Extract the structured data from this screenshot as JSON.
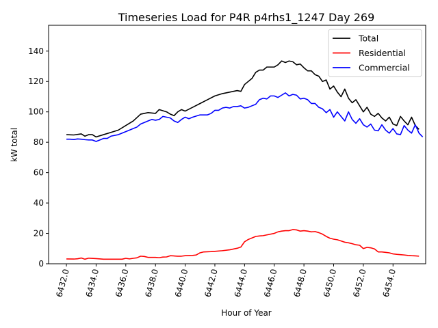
{
  "chart_data": {
    "type": "line",
    "title": "Timeseries Load for P4R p4rhs1_1247  Day 269",
    "xlabel": "Hour of Year",
    "ylabel": "kW total",
    "xlim": [
      6430.8,
      6456.2
    ],
    "ylim": [
      0,
      157
    ],
    "xticks": [
      6432,
      6434,
      6436,
      6438,
      6440,
      6442,
      6444,
      6446,
      6448,
      6450,
      6452,
      6454
    ],
    "xtick_labels": [
      "6432.0",
      "6434.0",
      "6436.0",
      "6438.0",
      "6440.0",
      "6442.0",
      "6444.0",
      "6446.0",
      "6448.0",
      "6450.0",
      "6452.0",
      "6454.0"
    ],
    "yticks": [
      0,
      20,
      40,
      60,
      80,
      100,
      120,
      140
    ],
    "ytick_labels": [
      "0",
      "20",
      "40",
      "60",
      "80",
      "100",
      "120",
      "140"
    ],
    "legend_position": "top-right",
    "grid": false,
    "series": [
      {
        "name": "Total",
        "color": "#000000",
        "points": [
          [
            6432.0,
            85.0
          ],
          [
            6432.5,
            84.8
          ],
          [
            6433.0,
            85.5
          ],
          [
            6433.25,
            84.0
          ],
          [
            6433.5,
            85.0
          ],
          [
            6433.75,
            85.0
          ],
          [
            6434.0,
            83.5
          ],
          [
            6434.5,
            85.0
          ],
          [
            6435.0,
            86.5
          ],
          [
            6435.5,
            88.0
          ],
          [
            6436.0,
            91.0
          ],
          [
            6436.5,
            94.0
          ],
          [
            6437.0,
            98.5
          ],
          [
            6437.5,
            99.5
          ],
          [
            6438.0,
            99.0
          ],
          [
            6438.25,
            101.5
          ],
          [
            6438.75,
            100.0
          ],
          [
            6439.0,
            98.5
          ],
          [
            6439.25,
            97.5
          ],
          [
            6439.5,
            100.0
          ],
          [
            6439.75,
            101.5
          ],
          [
            6440.0,
            100.5
          ],
          [
            6440.5,
            103.0
          ],
          [
            6441.0,
            105.5
          ],
          [
            6441.5,
            108.0
          ],
          [
            6442.0,
            110.5
          ],
          [
            6442.5,
            112.0
          ],
          [
            6443.0,
            113.0
          ],
          [
            6443.5,
            114.0
          ],
          [
            6443.75,
            113.5
          ],
          [
            6444.0,
            118.0
          ],
          [
            6444.5,
            122.0
          ],
          [
            6444.75,
            126.0
          ],
          [
            6445.0,
            127.5
          ],
          [
            6445.25,
            127.5
          ],
          [
            6445.5,
            129.5
          ],
          [
            6446.0,
            129.5
          ],
          [
            6446.25,
            131.0
          ],
          [
            6446.5,
            133.5
          ],
          [
            6446.75,
            132.5
          ],
          [
            6447.0,
            133.5
          ],
          [
            6447.25,
            133.0
          ],
          [
            6447.5,
            131.0
          ],
          [
            6447.75,
            131.5
          ],
          [
            6448.0,
            129.0
          ],
          [
            6448.25,
            127.0
          ],
          [
            6448.5,
            127.0
          ],
          [
            6448.75,
            124.5
          ],
          [
            6449.0,
            123.5
          ],
          [
            6449.25,
            120.0
          ],
          [
            6449.5,
            121.0
          ],
          [
            6449.75,
            115.0
          ],
          [
            6450.0,
            117.0
          ],
          [
            6450.25,
            113.0
          ],
          [
            6450.5,
            110.0
          ],
          [
            6450.75,
            115.0
          ],
          [
            6451.0,
            109.0
          ],
          [
            6451.25,
            106.0
          ],
          [
            6451.5,
            108.0
          ],
          [
            6451.75,
            104.0
          ],
          [
            6452.0,
            100.0
          ],
          [
            6452.25,
            103.0
          ],
          [
            6452.5,
            98.5
          ],
          [
            6452.75,
            97.0
          ],
          [
            6453.0,
            99.0
          ],
          [
            6453.25,
            96.0
          ],
          [
            6453.5,
            94.0
          ],
          [
            6453.75,
            96.5
          ],
          [
            6454.0,
            92.0
          ],
          [
            6454.25,
            91.0
          ],
          [
            6454.5,
            97.0
          ],
          [
            6454.75,
            94.0
          ],
          [
            6455.0,
            91.5
          ],
          [
            6455.25,
            96.5
          ],
          [
            6455.5,
            91.0
          ],
          [
            6455.75,
            88.5
          ]
        ]
      },
      {
        "name": "Residential",
        "color": "#ff0000",
        "points": [
          [
            6432.0,
            3.2
          ],
          [
            6432.5,
            3.1
          ],
          [
            6432.75,
            3.3
          ],
          [
            6433.0,
            3.8
          ],
          [
            6433.25,
            3.0
          ],
          [
            6433.5,
            3.7
          ],
          [
            6434.0,
            3.4
          ],
          [
            6434.5,
            3.0
          ],
          [
            6435.0,
            3.0
          ],
          [
            6435.5,
            3.0
          ],
          [
            6435.75,
            3.0
          ],
          [
            6436.0,
            3.6
          ],
          [
            6436.25,
            3.2
          ],
          [
            6436.5,
            3.6
          ],
          [
            6436.75,
            3.9
          ],
          [
            6437.0,
            5.0
          ],
          [
            6437.25,
            4.8
          ],
          [
            6437.5,
            4.2
          ],
          [
            6438.0,
            4.2
          ],
          [
            6438.25,
            4.0
          ],
          [
            6438.5,
            4.4
          ],
          [
            6438.75,
            4.5
          ],
          [
            6439.0,
            5.3
          ],
          [
            6439.5,
            5.0
          ],
          [
            6439.75,
            5.0
          ],
          [
            6440.0,
            5.3
          ],
          [
            6440.5,
            5.5
          ],
          [
            6440.75,
            5.8
          ],
          [
            6441.0,
            7.2
          ],
          [
            6441.25,
            7.8
          ],
          [
            6441.75,
            8.0
          ],
          [
            6442.0,
            8.2
          ],
          [
            6442.5,
            8.6
          ],
          [
            6443.0,
            9.2
          ],
          [
            6443.5,
            10.2
          ],
          [
            6443.75,
            11.0
          ],
          [
            6444.0,
            14.5
          ],
          [
            6444.25,
            16.0
          ],
          [
            6444.5,
            17.0
          ],
          [
            6444.75,
            18.0
          ],
          [
            6445.0,
            18.3
          ],
          [
            6445.25,
            18.5
          ],
          [
            6445.5,
            19.0
          ],
          [
            6446.0,
            20.0
          ],
          [
            6446.25,
            21.0
          ],
          [
            6446.5,
            21.5
          ],
          [
            6446.75,
            21.8
          ],
          [
            6447.0,
            21.8
          ],
          [
            6447.25,
            22.5
          ],
          [
            6447.5,
            22.3
          ],
          [
            6447.75,
            21.5
          ],
          [
            6448.0,
            21.8
          ],
          [
            6448.25,
            21.5
          ],
          [
            6448.5,
            21.0
          ],
          [
            6448.75,
            21.2
          ],
          [
            6449.0,
            20.5
          ],
          [
            6449.25,
            19.5
          ],
          [
            6449.5,
            18.0
          ],
          [
            6449.75,
            16.8
          ],
          [
            6450.0,
            16.2
          ],
          [
            6450.25,
            15.8
          ],
          [
            6450.5,
            15.0
          ],
          [
            6450.75,
            14.2
          ],
          [
            6451.0,
            13.8
          ],
          [
            6451.25,
            13.2
          ],
          [
            6451.5,
            12.5
          ],
          [
            6451.75,
            12.2
          ],
          [
            6452.0,
            10.0
          ],
          [
            6452.25,
            10.8
          ],
          [
            6452.5,
            10.5
          ],
          [
            6452.75,
            9.8
          ],
          [
            6453.0,
            7.8
          ],
          [
            6453.25,
            7.8
          ],
          [
            6453.5,
            7.5
          ],
          [
            6453.75,
            7.2
          ],
          [
            6454.0,
            6.5
          ],
          [
            6454.25,
            6.2
          ],
          [
            6454.5,
            6.0
          ],
          [
            6454.75,
            5.8
          ],
          [
            6455.0,
            5.5
          ],
          [
            6455.25,
            5.3
          ],
          [
            6455.5,
            5.2
          ],
          [
            6455.75,
            5.0
          ]
        ]
      },
      {
        "name": "Commercial",
        "color": "#0000ff",
        "points": [
          [
            6432.0,
            82.0
          ],
          [
            6432.25,
            82.0
          ],
          [
            6432.5,
            81.8
          ],
          [
            6432.75,
            82.2
          ],
          [
            6433.0,
            82.0
          ],
          [
            6433.25,
            81.7
          ],
          [
            6433.5,
            81.5
          ],
          [
            6433.75,
            81.5
          ],
          [
            6434.0,
            80.5
          ],
          [
            6434.25,
            81.5
          ],
          [
            6434.5,
            82.5
          ],
          [
            6434.75,
            82.5
          ],
          [
            6435.0,
            84.0
          ],
          [
            6435.5,
            85.0
          ],
          [
            6436.0,
            87.0
          ],
          [
            6436.5,
            89.0
          ],
          [
            6436.75,
            90.0
          ],
          [
            6437.0,
            92.0
          ],
          [
            6437.5,
            94.0
          ],
          [
            6437.75,
            95.0
          ],
          [
            6438.0,
            94.5
          ],
          [
            6438.25,
            95.0
          ],
          [
            6438.5,
            97.0
          ],
          [
            6439.0,
            96.0
          ],
          [
            6439.25,
            94.0
          ],
          [
            6439.5,
            93.0
          ],
          [
            6439.75,
            95.0
          ],
          [
            6440.0,
            96.5
          ],
          [
            6440.25,
            95.5
          ],
          [
            6440.5,
            96.5
          ],
          [
            6441.0,
            98.0
          ],
          [
            6441.5,
            98.0
          ],
          [
            6441.75,
            99.0
          ],
          [
            6442.0,
            101.0
          ],
          [
            6442.25,
            101.0
          ],
          [
            6442.5,
            102.5
          ],
          [
            6442.75,
            103.0
          ],
          [
            6443.0,
            102.5
          ],
          [
            6443.25,
            103.5
          ],
          [
            6443.5,
            103.5
          ],
          [
            6443.75,
            104.0
          ],
          [
            6444.0,
            102.5
          ],
          [
            6444.25,
            103.0
          ],
          [
            6444.5,
            104.0
          ],
          [
            6444.75,
            105.0
          ],
          [
            6445.0,
            108.0
          ],
          [
            6445.25,
            109.0
          ],
          [
            6445.5,
            108.5
          ],
          [
            6445.75,
            110.5
          ],
          [
            6446.0,
            110.5
          ],
          [
            6446.25,
            109.5
          ],
          [
            6446.5,
            111.0
          ],
          [
            6446.75,
            112.5
          ],
          [
            6447.0,
            110.5
          ],
          [
            6447.25,
            111.5
          ],
          [
            6447.5,
            111.0
          ],
          [
            6447.75,
            108.5
          ],
          [
            6448.0,
            109.0
          ],
          [
            6448.25,
            108.0
          ],
          [
            6448.5,
            105.5
          ],
          [
            6448.75,
            105.5
          ],
          [
            6449.0,
            103.0
          ],
          [
            6449.25,
            102.0
          ],
          [
            6449.5,
            99.5
          ],
          [
            6449.75,
            101.5
          ],
          [
            6450.0,
            96.5
          ],
          [
            6450.25,
            100.0
          ],
          [
            6450.5,
            97.0
          ],
          [
            6450.75,
            94.0
          ],
          [
            6451.0,
            100.0
          ],
          [
            6451.25,
            95.0
          ],
          [
            6451.5,
            92.5
          ],
          [
            6451.75,
            95.5
          ],
          [
            6452.0,
            91.5
          ],
          [
            6452.25,
            90.0
          ],
          [
            6452.5,
            92.0
          ],
          [
            6452.75,
            88.0
          ],
          [
            6453.0,
            87.5
          ],
          [
            6453.25,
            91.5
          ],
          [
            6453.5,
            88.0
          ],
          [
            6453.75,
            86.0
          ],
          [
            6454.0,
            89.0
          ],
          [
            6454.25,
            85.5
          ],
          [
            6454.5,
            85.0
          ],
          [
            6454.75,
            91.0
          ],
          [
            6455.0,
            88.0
          ],
          [
            6455.25,
            86.0
          ],
          [
            6455.5,
            91.5
          ],
          [
            6455.75,
            86.0
          ],
          [
            6456.0,
            83.5
          ]
        ]
      }
    ]
  }
}
